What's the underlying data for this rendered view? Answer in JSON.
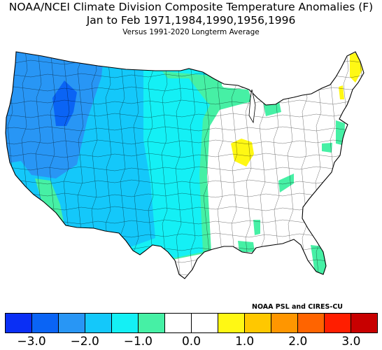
{
  "title": {
    "line1": "NOAA/NCEI Climate Division Composite Temperature Anomalies (F)",
    "line2": "Jan to Feb  1971,1984,1990,1956,1996",
    "line3": "Versus 1991-2020 Longterm Average"
  },
  "credit": "NOAA PSL and CIRES-CU",
  "colorbar": {
    "colors": [
      "#0a2ff5",
      "#0a64f5",
      "#2896f5",
      "#14c8fa",
      "#14f0f5",
      "#46f0a5",
      "#ffffff",
      "#ffffff",
      "#fff814",
      "#ffc800",
      "#ff9600",
      "#ff6400",
      "#ff1e00",
      "#c80000"
    ],
    "tick_labels": [
      "−3.0",
      "−2.0",
      "−1.0",
      "0.0",
      "1.0",
      "2.0",
      "3.0"
    ],
    "tick_values": [
      -3,
      -2,
      -1,
      0,
      1,
      2,
      3
    ],
    "range": [
      -3.5,
      3.5
    ]
  },
  "regions": {
    "pacific_northwest": {
      "anomaly_class": "-2.0 to -1.5",
      "color": "#2896f5"
    },
    "idaho_core": {
      "anomaly_class": "below -2.5",
      "color": "#0a64f5"
    },
    "west": {
      "anomaly_class": "-1.5 to -1.0",
      "color": "#14c8fa"
    },
    "plains": {
      "anomaly_class": "-1.0 to -0.5",
      "color": "#14f0f5"
    },
    "transition": {
      "anomaly_class": "-0.5 to 0",
      "color": "#46f0a5"
    },
    "east_southeast": {
      "anomaly_class": "0 to 0.5",
      "color": "#ffffff"
    },
    "central_illinois": {
      "anomaly_class": "0.5 to 1.0",
      "color": "#fff814"
    },
    "maine": {
      "anomaly_class": "0.5 to 1.0",
      "color": "#fff814"
    }
  }
}
